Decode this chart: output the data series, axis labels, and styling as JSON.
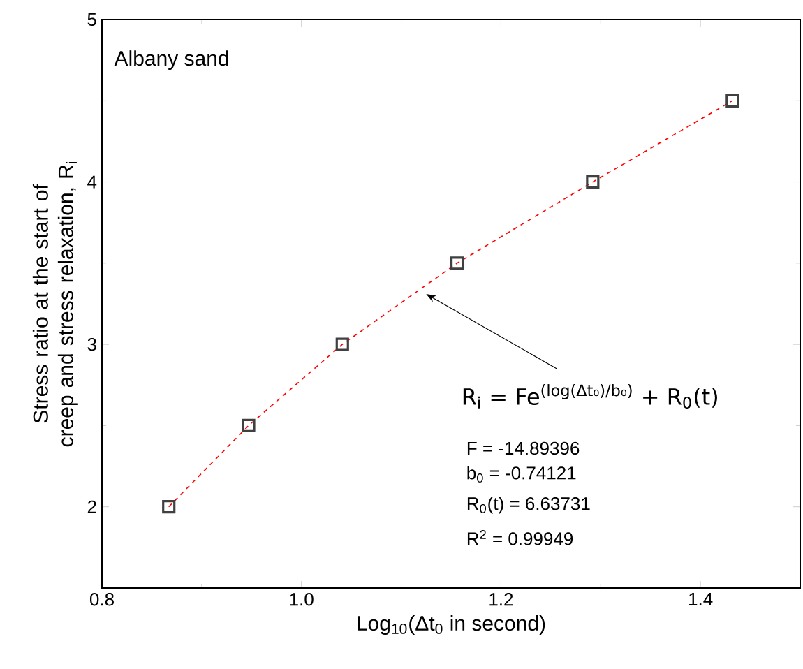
{
  "chart_data": {
    "type": "scatter",
    "xlabel": "Log$_{10}$(Δt$_{0}$ in second)",
    "ylabel": "Stress ratio at the start of creep and stress relaxation, R$_{i}$",
    "x": [
      0.867,
      0.947,
      1.041,
      1.156,
      1.292,
      1.432
    ],
    "series": [
      {
        "color": "#404040",
        "marker": "square",
        "values": [
          2,
          2.5,
          3,
          3.5,
          4,
          4.5
        ]
      },
      {
        "type": "line",
        "color": "#ff0000",
        "line_style": "dashed",
        "marker": "none",
        "values": [
          2,
          2.5,
          3,
          3.5,
          4,
          4.5
        ]
      }
    ],
    "xlim": [
      0.8,
      1.5
    ],
    "ylim": [
      1.5,
      5
    ],
    "xticks": [
      {
        "value": 0.8,
        "label": "0.8"
      },
      {
        "value": 0.9,
        "label": null
      },
      {
        "value": 1.0,
        "label": "1.0"
      },
      {
        "value": 1.1,
        "label": null
      },
      {
        "value": 1.2,
        "label": "1.2"
      },
      {
        "value": 1.3,
        "label": null
      },
      {
        "value": 1.4,
        "label": "1.4"
      }
    ],
    "yticks": [
      2,
      {
        "value": 2.5,
        "label": null
      },
      3,
      {
        "value": 3.5,
        "label": null
      },
      4,
      {
        "value": 4.5,
        "label": null
      },
      5
    ],
    "grid": false,
    "annotations": [
      "Albany sand",
      {
        "text": "R$_{i}$ = Fe$^{(log(Δt₀)/b₀)}$ + R$_{0}$(t)",
        "x": 1.125,
        "y": 3.31
      },
      "F = -14.89396",
      "b$_{0}$ = -0.74121",
      "R$_{0}$(t) = 6.63731",
      "R$^{2}$ = 0.99949"
    ]
  }
}
